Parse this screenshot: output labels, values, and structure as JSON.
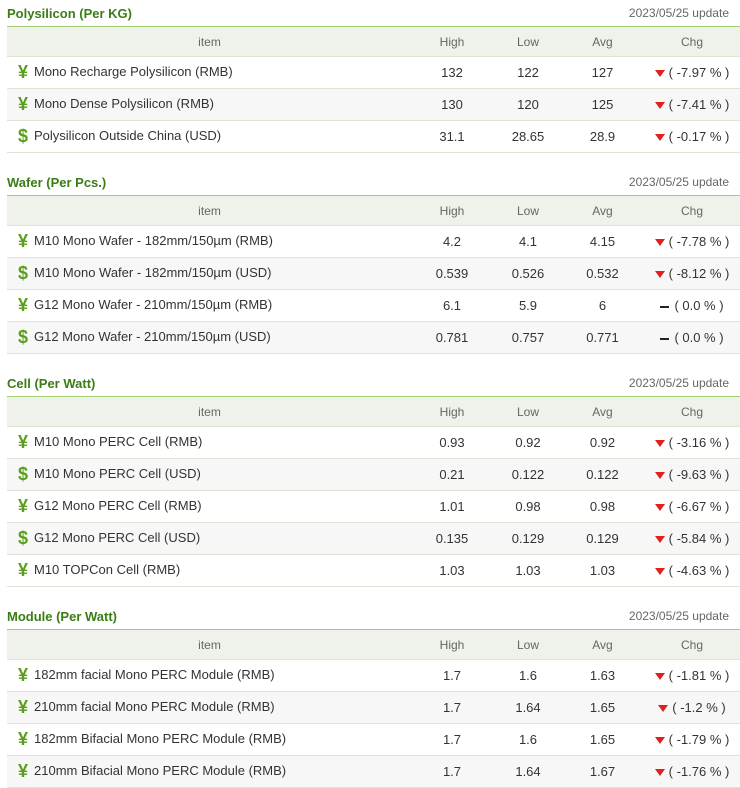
{
  "columns": [
    "item",
    "High",
    "Low",
    "Avg",
    "Chg"
  ],
  "sections": [
    {
      "title": "Polysilicon (Per KG)",
      "update": "2023/05/25 update",
      "rows": [
        {
          "currency": "¥",
          "item": "Mono Recharge Polysilicon (RMB)",
          "high": 132,
          "low": 122,
          "avg": 127,
          "chg": "( -7.97 % )",
          "trend": "down"
        },
        {
          "currency": "¥",
          "item": "Mono Dense Polysilicon (RMB)",
          "high": 130,
          "low": 120,
          "avg": 125,
          "chg": "( -7.41 % )",
          "trend": "down"
        },
        {
          "currency": "$",
          "item": "Polysilicon Outside China (USD)",
          "high": 31.1,
          "low": 28.65,
          "avg": 28.9,
          "chg": "( -0.17 % )",
          "trend": "down"
        }
      ]
    },
    {
      "title": "Wafer (Per Pcs.)",
      "update": "2023/05/25 update",
      "rows": [
        {
          "currency": "¥",
          "item": "M10 Mono Wafer - 182mm/150µm (RMB)",
          "high": 4.2,
          "low": 4.1,
          "avg": 4.15,
          "chg": "( -7.78 % )",
          "trend": "down"
        },
        {
          "currency": "$",
          "item": "M10 Mono Wafer - 182mm/150µm (USD)",
          "high": 0.539,
          "low": 0.526,
          "avg": 0.532,
          "chg": "( -8.12 % )",
          "trend": "down"
        },
        {
          "currency": "¥",
          "item": "G12 Mono Wafer - 210mm/150µm (RMB)",
          "high": 6.1,
          "low": 5.9,
          "avg": 6,
          "chg": "( 0.0 % )",
          "trend": "flat"
        },
        {
          "currency": "$",
          "item": "G12 Mono Wafer - 210mm/150µm (USD)",
          "high": 0.781,
          "low": 0.757,
          "avg": 0.771,
          "chg": "( 0.0 % )",
          "trend": "flat"
        }
      ]
    },
    {
      "title": "Cell (Per Watt)",
      "update": "2023/05/25 update",
      "rows": [
        {
          "currency": "¥",
          "item": "M10 Mono PERC Cell (RMB)",
          "high": 0.93,
          "low": 0.92,
          "avg": 0.92,
          "chg": "( -3.16 % )",
          "trend": "down"
        },
        {
          "currency": "$",
          "item": "M10 Mono PERC Cell (USD)",
          "high": 0.21,
          "low": 0.122,
          "avg": 0.122,
          "chg": "( -9.63 % )",
          "trend": "down"
        },
        {
          "currency": "¥",
          "item": "G12 Mono PERC Cell (RMB)",
          "high": 1.01,
          "low": 0.98,
          "avg": 0.98,
          "chg": "( -6.67 % )",
          "trend": "down"
        },
        {
          "currency": "$",
          "item": "G12 Mono PERC Cell (USD)",
          "high": 0.135,
          "low": 0.129,
          "avg": 0.129,
          "chg": "( -5.84 % )",
          "trend": "down"
        },
        {
          "currency": "¥",
          "item": "M10 TOPCon Cell (RMB)",
          "high": 1.03,
          "low": 1.03,
          "avg": 1.03,
          "chg": "( -4.63 % )",
          "trend": "down"
        }
      ]
    },
    {
      "title": "Module (Per Watt)",
      "update": "2023/05/25 update",
      "rows": [
        {
          "currency": "¥",
          "item": "182mm facial Mono PERC Module (RMB)",
          "high": 1.7,
          "low": 1.6,
          "avg": 1.63,
          "chg": "( -1.81 % )",
          "trend": "down"
        },
        {
          "currency": "¥",
          "item": "210mm facial Mono PERC Module (RMB)",
          "high": 1.7,
          "low": 1.64,
          "avg": 1.65,
          "chg": "( -1.2 % )",
          "trend": "down"
        },
        {
          "currency": "¥",
          "item": "182mm Bifacial Mono PERC Module (RMB)",
          "high": 1.7,
          "low": 1.6,
          "avg": 1.65,
          "chg": "( -1.79 % )",
          "trend": "down"
        },
        {
          "currency": "¥",
          "item": "210mm Bifacial Mono PERC Module (RMB)",
          "high": 1.7,
          "low": 1.64,
          "avg": 1.67,
          "chg": "( -1.76 % )",
          "trend": "down"
        }
      ]
    }
  ]
}
